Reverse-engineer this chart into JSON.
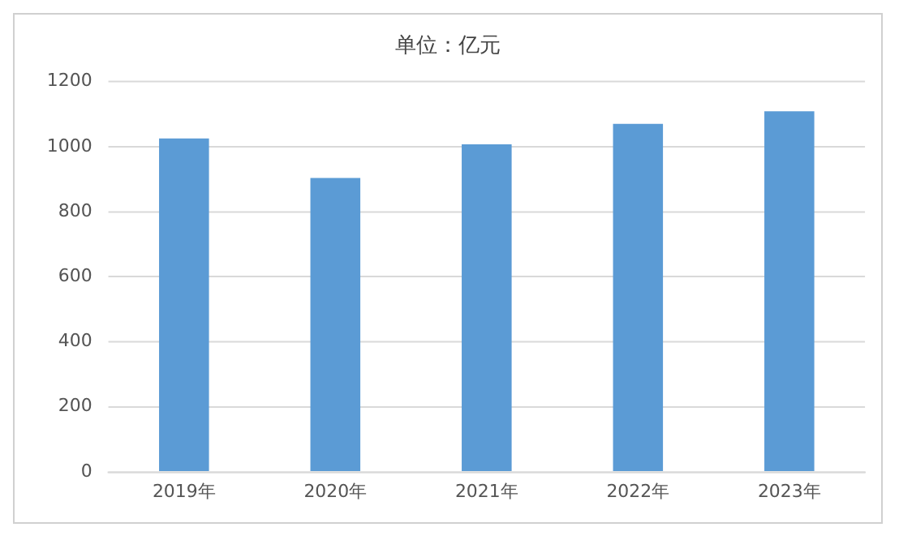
{
  "chart_data": {
    "type": "bar",
    "title": "单位：亿元",
    "categories": [
      "2019年",
      "2020年",
      "2021年",
      "2022年",
      "2023年"
    ],
    "values": [
      1025,
      904,
      1007,
      1070,
      1109
    ],
    "color": "#5b9bd5",
    "ylim": [
      0,
      1200
    ],
    "yticks": [
      0,
      200,
      400,
      600,
      800,
      1000,
      1200
    ],
    "grid": "y",
    "legend": false
  }
}
